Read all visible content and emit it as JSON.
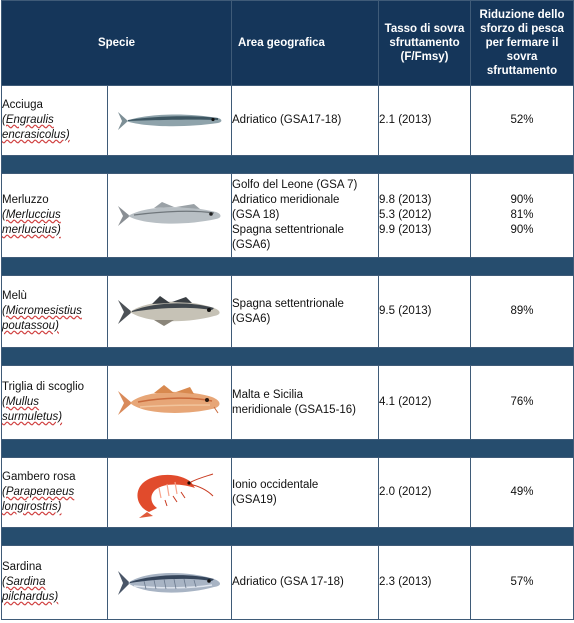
{
  "header": {
    "species": "Specie",
    "area": "Area geografica",
    "rate": [
      "Tasso di sovra",
      "sfruttamento",
      "(F/Fmsy)"
    ],
    "reduction": [
      "Riduzione dello",
      "sforzo di pesca",
      "per fermare il",
      "sovra",
      "sfruttamento"
    ]
  },
  "rows": [
    {
      "common": "Acciuga",
      "latin": [
        "(Engraulis",
        "encrasicolus)"
      ],
      "image": "anchovy-image",
      "area": [
        "Adriatico (GSA17-18)"
      ],
      "rate": [
        "2.1 (2013)"
      ],
      "reduction": [
        "52%"
      ]
    },
    {
      "common": "Merluzzo",
      "latin": [
        "(Merluccius",
        "merluccius)"
      ],
      "image": "hake-image",
      "area": [
        "Golfo del Leone (GSA 7)",
        "Adriatico meridionale",
        "(GSA 18)",
        "Spagna settentrionale",
        "(GSA6)"
      ],
      "rate": [
        "9.8 (2013)",
        "5.3 (2012)",
        "9.9 (2013)"
      ],
      "reduction": [
        "90%",
        "81%",
        "90%"
      ]
    },
    {
      "common": "Melù",
      "latin": [
        "(Micromesistius",
        "poutassou)"
      ],
      "image": "blue-whiting-image",
      "area": [
        "Spagna settentrionale",
        "(GSA6)"
      ],
      "rate": [
        "9.5 (2013)"
      ],
      "reduction": [
        "89%"
      ]
    },
    {
      "common": "Triglia di scoglio",
      "latin": [
        "(Mullus",
        "surmuletus)"
      ],
      "image": "red-mullet-image",
      "area": [
        "Malta e Sicilia",
        "meridionale (GSA15-16)"
      ],
      "rate": [
        "4.1 (2012)"
      ],
      "reduction": [
        "76%"
      ]
    },
    {
      "common": "Gambero rosa",
      "latin": [
        "(Parapenaeus",
        "longirostris)"
      ],
      "image": "pink-shrimp-image",
      "area": [
        "Ionio occidentale",
        "(GSA19)"
      ],
      "rate": [
        "2.0 (2012)"
      ],
      "reduction": [
        "49%"
      ]
    },
    {
      "common": "Sardina",
      "latin": [
        "(Sardina",
        "pilchardus)"
      ],
      "image": "sardine-image",
      "area": [
        "Adriatico (GSA 17-18)"
      ],
      "rate": [
        "2.3 (2013)"
      ],
      "reduction": [
        "57%"
      ]
    }
  ]
}
